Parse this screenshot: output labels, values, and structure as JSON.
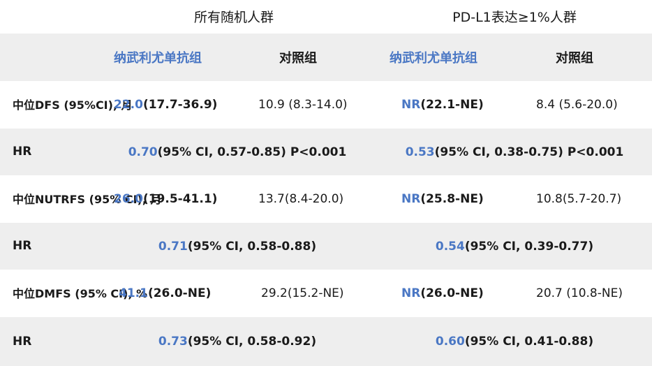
{
  "group_titles": {
    "all": "所有随机人群",
    "pdl1": "PD-L1表达≥1%人群"
  },
  "header": {
    "arm_nivolumab": "纳武利尤单抗组",
    "arm_control": "对照组"
  },
  "rows": {
    "dfs": {
      "label_line1": "中位DFS",
      "label_line2": "(95%CI), 月",
      "all_nivo_value": "22.0",
      "all_nivo_ci": " (17.7-36.9)",
      "all_ctrl": "10.9 (8.3-14.0)",
      "pd_nivo_value": "NR",
      "pd_nivo_ci": " (22.1-NE)",
      "pd_ctrl": "8.4 (5.6-20.0)"
    },
    "dfs_hr": {
      "label": "HR",
      "all_value": "0.70",
      "all_rest": " (95% CI, 0.57-0.85) P<0.001",
      "pd_value": "0.53",
      "pd_rest": " (95% CI, 0.38-0.75) P<0.001"
    },
    "nutrfs": {
      "label_line1": "中位NUTRFS",
      "label_line2": "(95% CI), 月",
      "all_nivo_value": "26.0",
      "all_nivo_ci": " (19.5-41.1)",
      "all_ctrl": "13.7(8.4-20.0)",
      "pd_nivo_value": "NR",
      "pd_nivo_ci": " (25.8-NE)",
      "pd_ctrl": "10.8(5.7-20.7)"
    },
    "nutrfs_hr": {
      "label": "HR",
      "all_value": "0.71",
      "all_rest": "(95% CI, 0.58-0.88)",
      "pd_value": "0.54",
      "pd_rest": " (95% CI, 0.39-0.77)"
    },
    "dmfs": {
      "label_line1": "中位DMFS",
      "label_line2": "(95% CI), %",
      "all_nivo_value": "41.1",
      "all_nivo_ci": " (26.0-NE)",
      "all_ctrl": "29.2(15.2-NE)",
      "pd_nivo_value": "NR",
      "pd_nivo_ci": " (26.0-NE)",
      "pd_ctrl": "20.7 (10.8-NE)"
    },
    "dmfs_hr": {
      "label": "HR",
      "all_value": "0.73",
      "all_rest": "(95% CI, 0.58-0.92)",
      "pd_value": "0.60",
      "pd_rest": " (95% CI, 0.41-0.88)"
    }
  },
  "colors": {
    "accent_blue": "#4a77c4",
    "band_gray": "#eeeeee",
    "text": "#1a1a1a"
  }
}
